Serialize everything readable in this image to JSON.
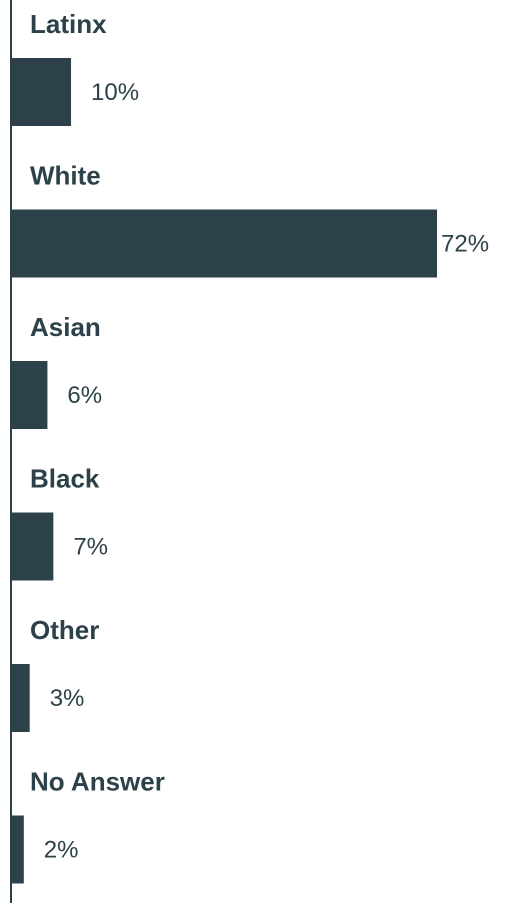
{
  "chart_data": {
    "type": "bar",
    "orientation": "horizontal",
    "categories": [
      "Latinx",
      "White",
      "Asian",
      "Black",
      "Other",
      "No Answer"
    ],
    "values": [
      10,
      72,
      6,
      7,
      3,
      2
    ],
    "value_labels": [
      "10%",
      "72%",
      "6%",
      "7%",
      "3%",
      "2%"
    ],
    "unit": "%",
    "title": "",
    "xlabel": "",
    "ylabel": "",
    "xlim": [
      0,
      72
    ],
    "grid": false,
    "legend": "none",
    "colors": {
      "bar": "#2c4149",
      "axis": "#2c4149",
      "category_text": "#2c4149",
      "value_text": "#2c4149"
    }
  }
}
